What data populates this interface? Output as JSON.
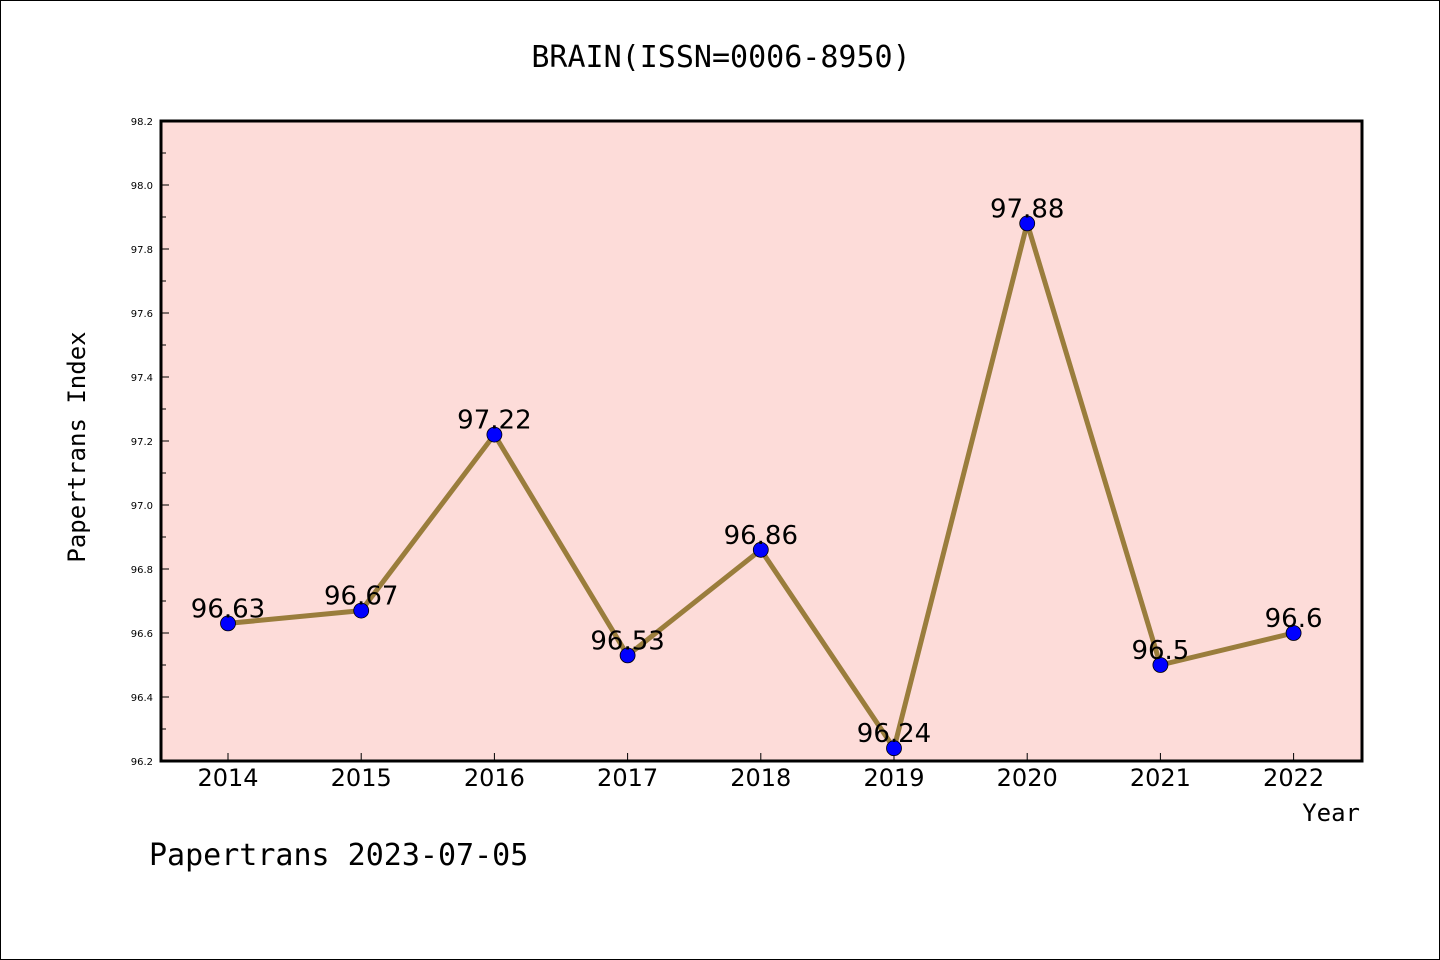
{
  "chart_data": {
    "type": "line",
    "title": "BRAIN(ISSN=0006-8950)",
    "xlabel": "Year",
    "ylabel": "Papertrans Index",
    "categories": [
      "2014",
      "2015",
      "2016",
      "2017",
      "2018",
      "2019",
      "2020",
      "2021",
      "2022"
    ],
    "series": [
      {
        "values": [
          96.63,
          96.67,
          97.22,
          96.53,
          96.86,
          96.24,
          97.88,
          96.5,
          96.6
        ],
        "line_color": "#9a7d3c",
        "marker_color": "#0000ff"
      }
    ],
    "data_labels": [
      "96.63",
      "96.67",
      "97.22",
      "96.53",
      "96.86",
      "96.24",
      "97.88",
      "96.5",
      "96.6"
    ],
    "ylim": [
      96.2,
      98.2
    ],
    "yticks": [
      "96.2",
      "96.4",
      "96.6",
      "96.8",
      "97.0",
      "97.2",
      "97.4",
      "97.6",
      "97.8",
      "98.0",
      "98.2"
    ],
    "grid": false,
    "plot_background": "#fddcd9",
    "footer": "Papertrans 2023-07-05"
  }
}
